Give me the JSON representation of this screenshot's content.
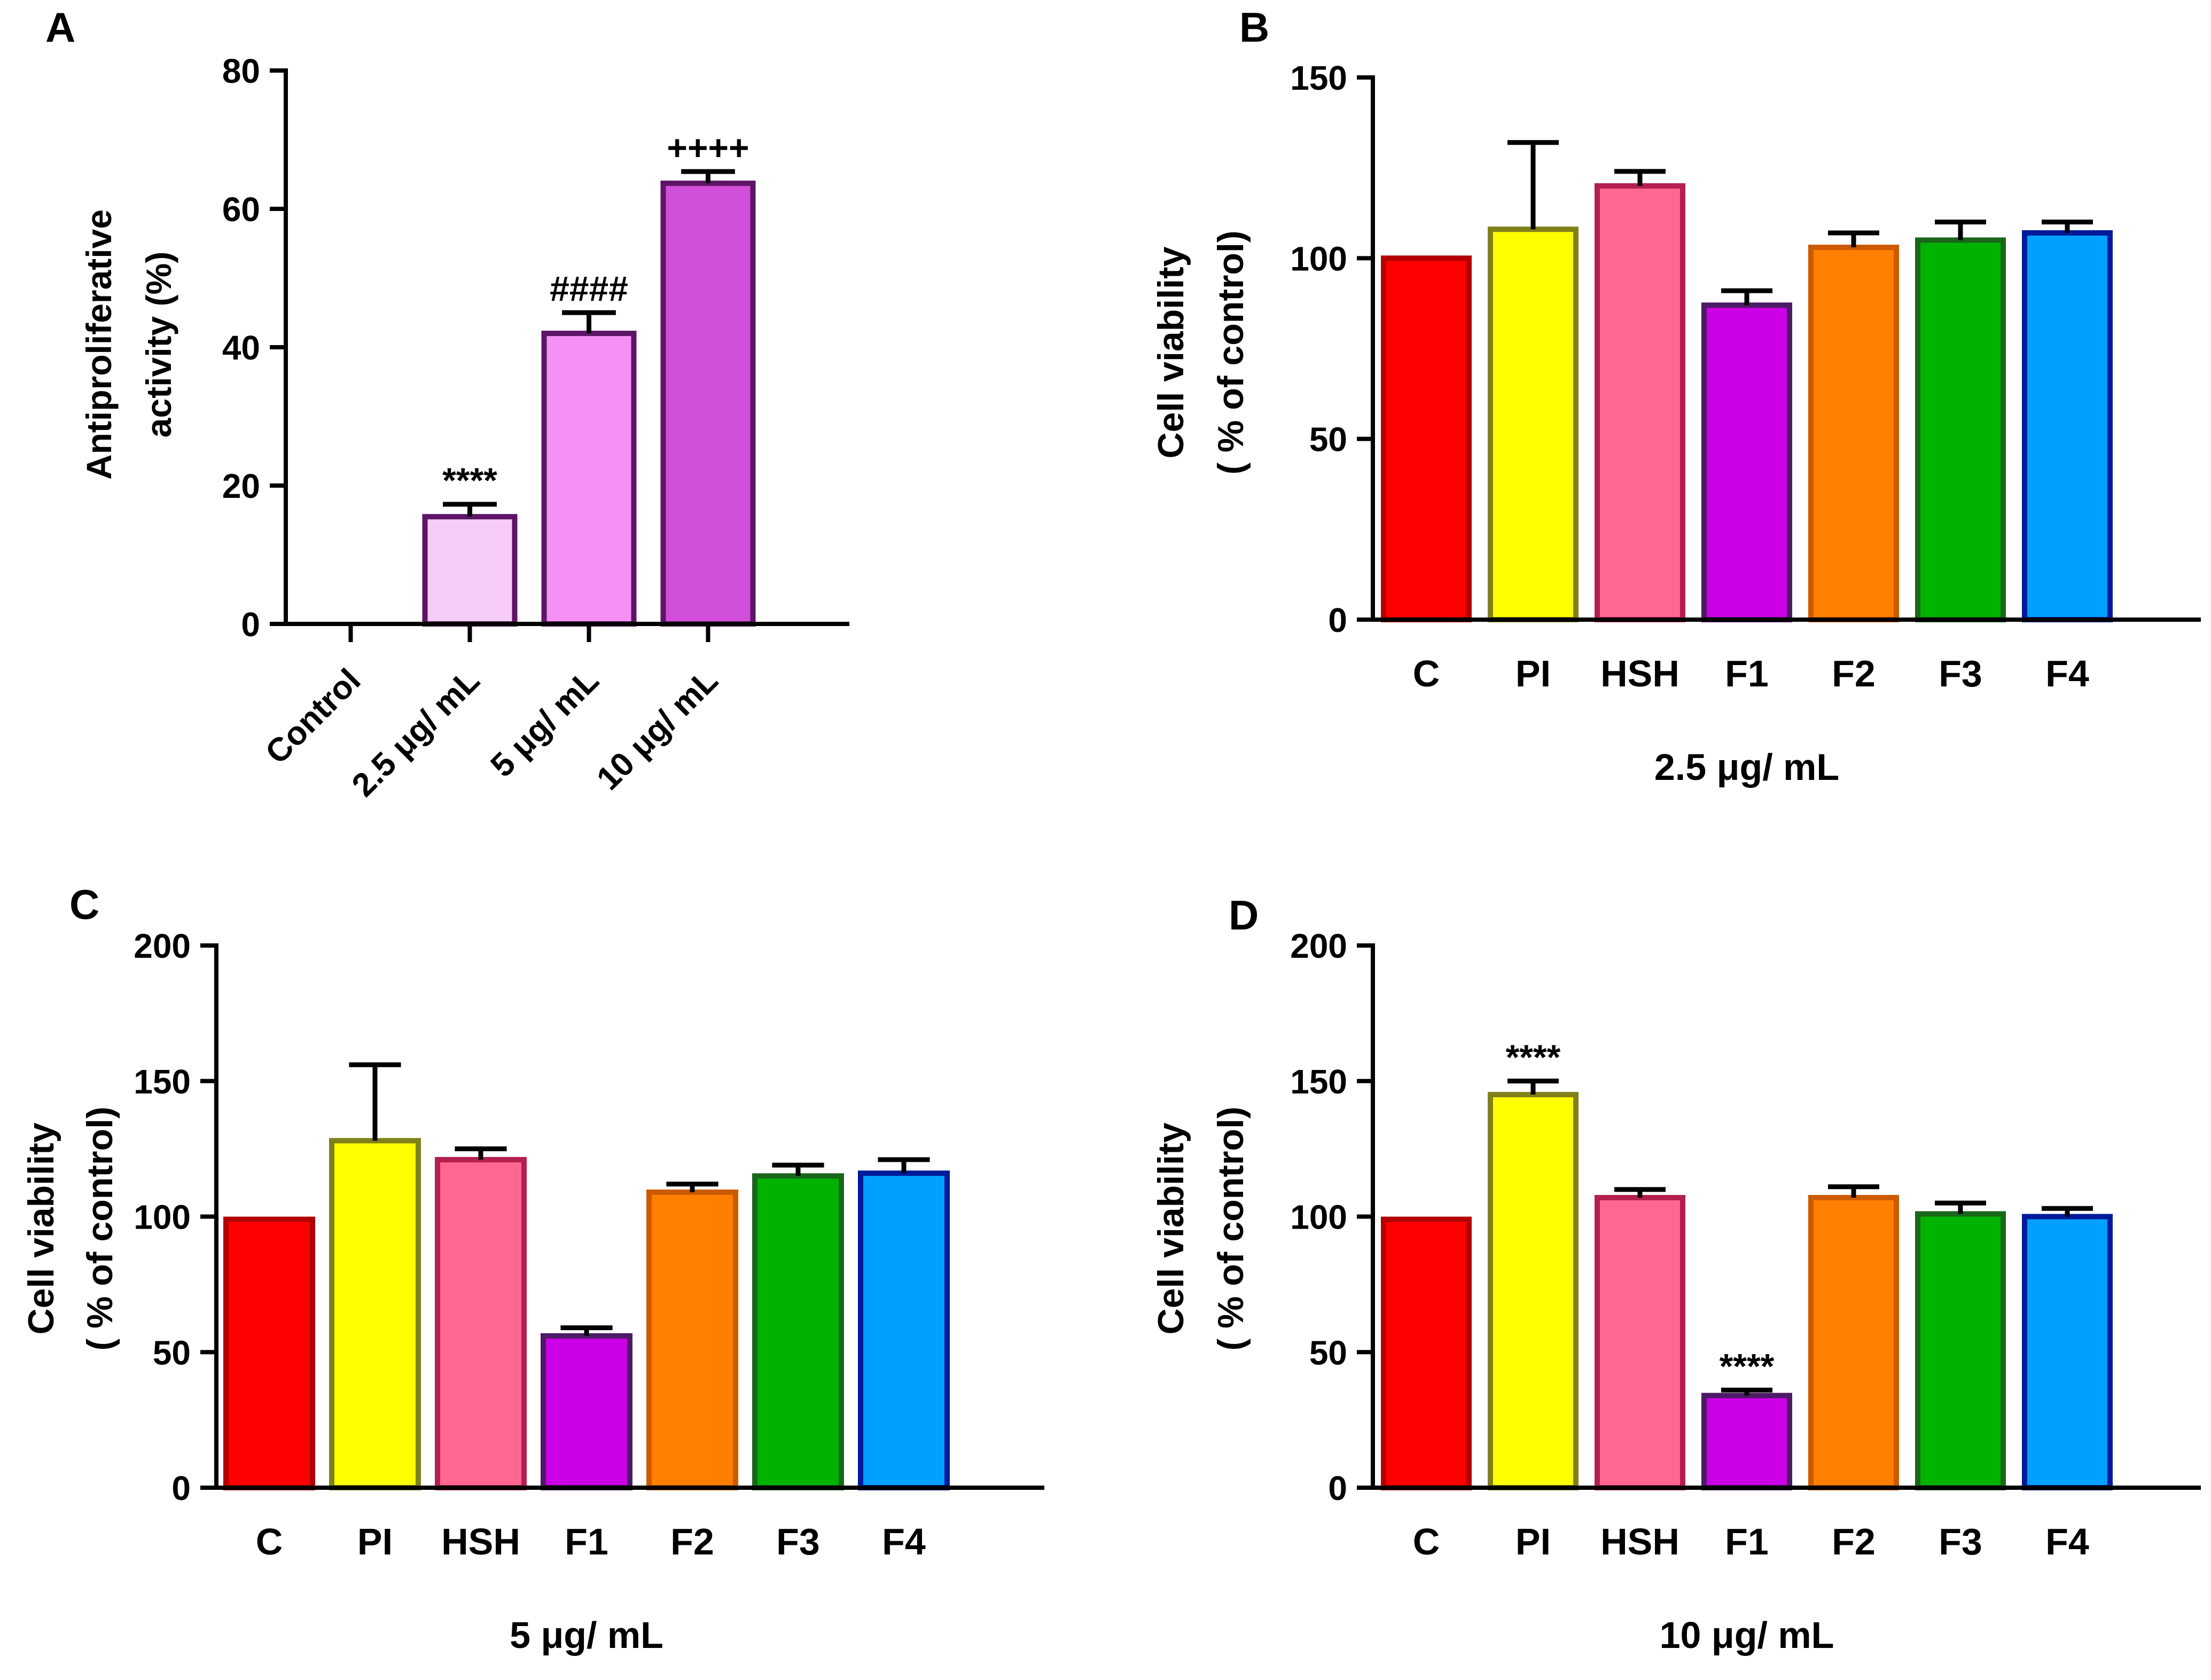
{
  "chart_data": [
    {
      "panel": "A",
      "type": "bar",
      "title": "",
      "xlabel": "",
      "ylabel": [
        "Antiproliferative",
        "activity (%)"
      ],
      "ylim": [
        0,
        80
      ],
      "yticks": [
        0,
        20,
        40,
        60,
        80
      ],
      "categories": [
        "Control",
        "2.5 μg/ mL",
        "5 μg/ mL",
        "10 μg/ mL"
      ],
      "values": [
        0,
        15.5,
        42,
        63.7
      ],
      "errors": [
        0,
        1.8,
        3,
        1.7
      ],
      "annotations": [
        "",
        "****",
        "####",
        "++++"
      ],
      "colors": [
        "#ffffff",
        "#f7ccf7",
        "#f590f5",
        "#d24fd9"
      ],
      "edge_color": "#5d1566"
    },
    {
      "panel": "B",
      "type": "bar",
      "title": "",
      "xlabel": "2.5 μg/ mL",
      "ylabel": [
        "Cell viability",
        "( % of control)"
      ],
      "ylim": [
        0,
        150
      ],
      "yticks": [
        0,
        50,
        100,
        150
      ],
      "categories": [
        "C",
        "PI",
        "HSH",
        "F1",
        "F2",
        "F3",
        "F4"
      ],
      "values": [
        100,
        108,
        120,
        87,
        103,
        105,
        107
      ],
      "errors": [
        0,
        24,
        4,
        4,
        4,
        5,
        3
      ],
      "annotations": [
        "",
        "",
        "",
        "",
        "",
        "",
        ""
      ],
      "colors": [
        "#ff0000",
        "#ffff00",
        "#ff6690",
        "#cc00e6",
        "#ff7f00",
        "#00b300",
        "#00a0ff"
      ],
      "edge_colors": [
        "#b30000",
        "#80801a",
        "#b3204d",
        "#4d1a66",
        "#cc5a00",
        "#1a661a",
        "#001a99"
      ]
    },
    {
      "panel": "C",
      "type": "bar",
      "title": "",
      "xlabel": "5 μg/ mL",
      "ylabel": [
        "Cell viability",
        "( % of control)"
      ],
      "ylim": [
        0,
        200
      ],
      "yticks": [
        0,
        50,
        100,
        150,
        200
      ],
      "categories": [
        "C",
        "PI",
        "HSH",
        "F1",
        "F2",
        "F3",
        "F4"
      ],
      "values": [
        99,
        128,
        121,
        56,
        109,
        115,
        116
      ],
      "errors": [
        0,
        28,
        4,
        3,
        3,
        4,
        5
      ],
      "annotations": [
        "",
        "",
        "",
        "",
        "",
        "",
        ""
      ],
      "colors": [
        "#ff0000",
        "#ffff00",
        "#ff6690",
        "#cc00e6",
        "#ff7f00",
        "#00b300",
        "#00a0ff"
      ],
      "edge_colors": [
        "#b30000",
        "#80801a",
        "#b3204d",
        "#4d1a66",
        "#cc5a00",
        "#1a661a",
        "#001a99"
      ]
    },
    {
      "panel": "D",
      "type": "bar",
      "title": "",
      "xlabel": "10 μg/ mL",
      "ylabel": [
        "Cell viability",
        "( % of control)"
      ],
      "ylim": [
        0,
        200
      ],
      "yticks": [
        0,
        50,
        100,
        150,
        200
      ],
      "categories": [
        "C",
        "PI",
        "HSH",
        "F1",
        "F2",
        "F3",
        "F4"
      ],
      "values": [
        99,
        145,
        107,
        34,
        107,
        101,
        100
      ],
      "errors": [
        0,
        5,
        3,
        2,
        4,
        4,
        3
      ],
      "annotations": [
        "",
        "****",
        "",
        "****",
        "",
        "",
        ""
      ],
      "colors": [
        "#ff0000",
        "#ffff00",
        "#ff6690",
        "#cc00e6",
        "#ff7f00",
        "#00b300",
        "#00a0ff"
      ],
      "edge_colors": [
        "#b30000",
        "#80801a",
        "#b3204d",
        "#4d1a66",
        "#cc5a00",
        "#1a661a",
        "#001a99"
      ]
    }
  ]
}
